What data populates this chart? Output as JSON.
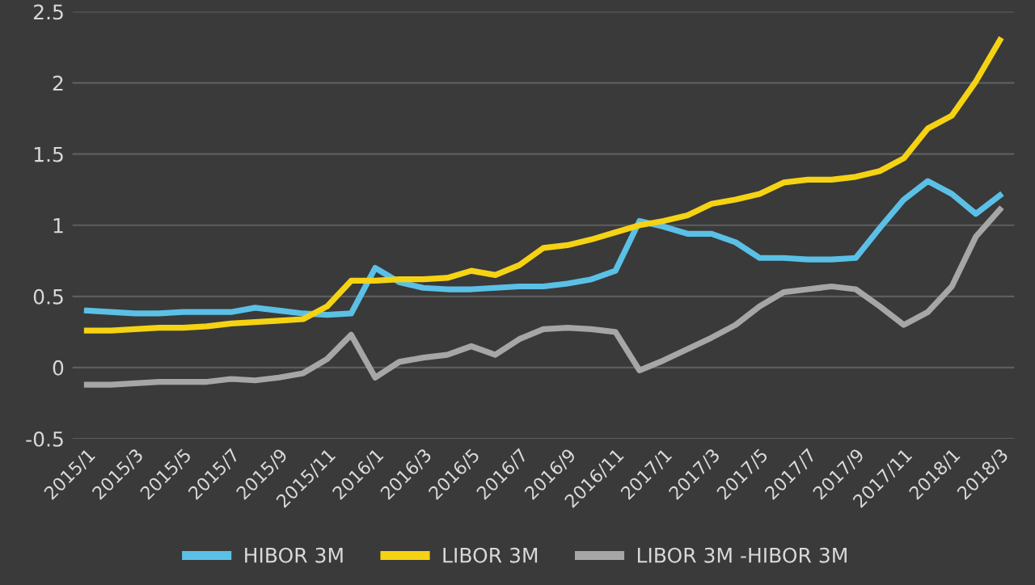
{
  "chart_data": {
    "type": "line",
    "categories": [
      "2015/1",
      null,
      "2015/3",
      null,
      "2015/5",
      null,
      "2015/7",
      null,
      "2015/9",
      null,
      "2015/11",
      null,
      "2016/1",
      null,
      "2016/3",
      null,
      "2016/5",
      null,
      "2016/7",
      null,
      "2016/9",
      null,
      "2016/11",
      null,
      "2017/1",
      null,
      "2017/3",
      null,
      "2017/5",
      null,
      "2017/7",
      null,
      "2017/9",
      null,
      "2017/11",
      null,
      "2018/1",
      null,
      "2018/3"
    ],
    "series": [
      {
        "name": "HIBOR 3M",
        "color": "#5bc0e6",
        "values": [
          0.4,
          0.39,
          0.38,
          0.38,
          0.39,
          0.39,
          0.39,
          0.42,
          0.4,
          0.38,
          0.37,
          0.38,
          0.7,
          0.6,
          0.56,
          0.55,
          0.55,
          0.56,
          0.57,
          0.57,
          0.59,
          0.62,
          0.68,
          1.03,
          0.99,
          0.94,
          0.94,
          0.88,
          0.77,
          0.77,
          0.76,
          0.76,
          0.77,
          0.98,
          1.18,
          1.31,
          1.22,
          1.08,
          1.21
        ]
      },
      {
        "name": "LIBOR 3M",
        "color": "#f5d313",
        "values": [
          0.26,
          0.26,
          0.27,
          0.28,
          0.28,
          0.29,
          0.31,
          0.32,
          0.33,
          0.34,
          0.43,
          0.61,
          0.61,
          0.62,
          0.62,
          0.63,
          0.68,
          0.65,
          0.72,
          0.84,
          0.86,
          0.9,
          0.95,
          1.0,
          1.03,
          1.07,
          1.15,
          1.18,
          1.22,
          1.3,
          1.32,
          1.32,
          1.34,
          1.38,
          1.47,
          1.68,
          1.77,
          2.01,
          2.3
        ]
      },
      {
        "name": "LIBOR 3M -HIBOR 3M",
        "color": "#a6a6a6",
        "values": [
          -0.12,
          -0.12,
          -0.11,
          -0.1,
          -0.1,
          -0.1,
          -0.08,
          -0.09,
          -0.07,
          -0.04,
          0.06,
          0.23,
          -0.07,
          0.04,
          0.07,
          0.09,
          0.15,
          0.09,
          0.2,
          0.27,
          0.28,
          0.27,
          0.25,
          -0.02,
          0.05,
          0.13,
          0.21,
          0.3,
          0.43,
          0.53,
          0.55,
          0.57,
          0.55,
          0.43,
          0.3,
          0.39,
          0.57,
          0.92,
          1.11
        ]
      }
    ],
    "ylim": [
      -0.5,
      2.5
    ],
    "yticks": [
      -0.5,
      0,
      0.5,
      1,
      1.5,
      2,
      2.5
    ],
    "grid": "y",
    "legend": "bottom",
    "marker": "none",
    "line_style": "solid"
  }
}
